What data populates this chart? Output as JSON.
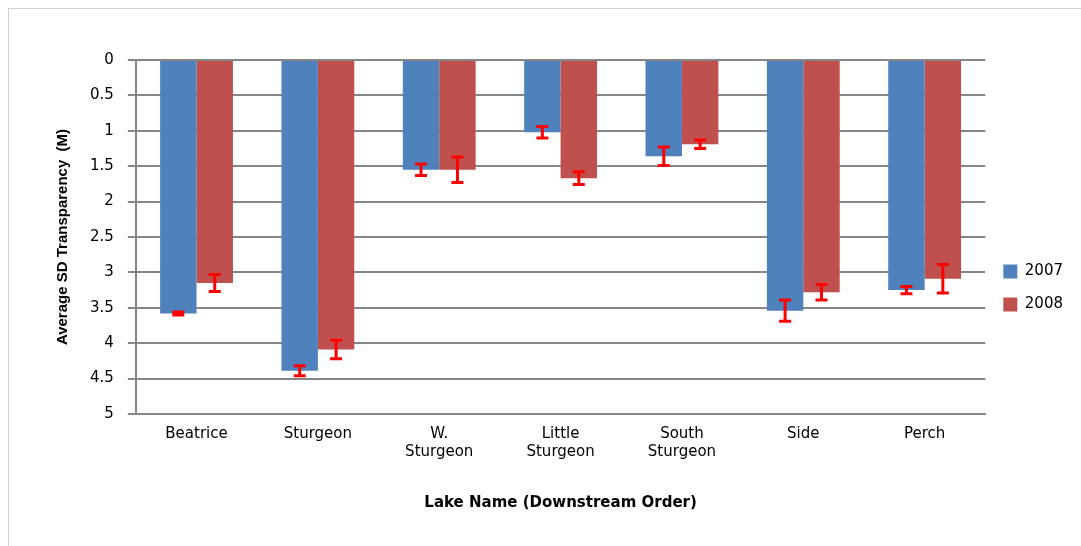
{
  "chart_data": {
    "type": "bar",
    "xlabel": "Lake Name (Downstream Order)",
    "ylabel": "Average SD Transparency  (M)",
    "categories": [
      "Beatrice",
      "Sturgeon",
      "W. Sturgeon",
      "Little Sturgeon",
      "South Sturgeon",
      "Side",
      "Perch"
    ],
    "series": [
      {
        "name": "2007",
        "color": "#4f81bd",
        "values": [
          3.58,
          4.39,
          1.55,
          1.02,
          1.36,
          3.54,
          3.25
        ],
        "errors": [
          0.02,
          0.07,
          0.08,
          0.08,
          0.13,
          0.15,
          0.05
        ]
      },
      {
        "name": "2008",
        "color": "#c0504d",
        "values": [
          3.15,
          4.09,
          1.55,
          1.67,
          1.19,
          3.28,
          3.09
        ],
        "errors": [
          0.12,
          0.13,
          0.18,
          0.09,
          0.06,
          0.11,
          0.2
        ]
      }
    ],
    "ylim": [
      5,
      0
    ],
    "yticks": [
      0,
      0.5,
      1,
      1.5,
      2,
      2.5,
      3,
      3.5,
      4,
      4.5,
      5
    ],
    "grid": "y",
    "legend": "right"
  }
}
